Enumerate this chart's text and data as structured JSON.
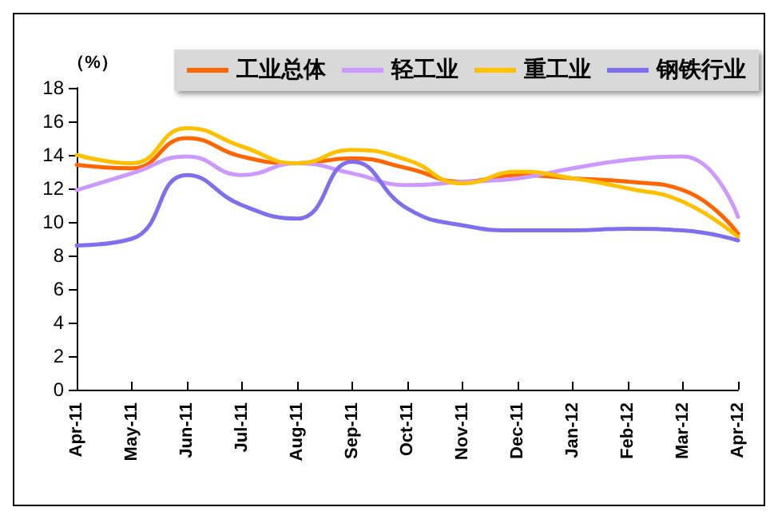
{
  "chart_data": {
    "type": "line",
    "ylabel": "（%）",
    "categories": [
      "Apr-11",
      "May-11",
      "Jun-11",
      "Jul-11",
      "Aug-11",
      "Sep-11",
      "Oct-11",
      "Nov-11",
      "Dec-11",
      "Jan-12",
      "Feb-12",
      "Mar-12",
      "Apr-12"
    ],
    "series": [
      {
        "name": "工业总体",
        "color": "#ff6600",
        "values": [
          13.4,
          13.2,
          15.0,
          13.9,
          13.5,
          13.8,
          13.2,
          12.4,
          12.8,
          12.6,
          12.4,
          11.9,
          9.3
        ]
      },
      {
        "name": "轻工业",
        "color": "#cc99ff",
        "values": [
          11.9,
          12.9,
          13.9,
          12.8,
          13.5,
          12.9,
          12.2,
          12.4,
          12.6,
          13.2,
          13.7,
          13.9,
          10.3
        ]
      },
      {
        "name": "重工业",
        "color": "#ffc000",
        "values": [
          14.0,
          13.5,
          15.6,
          14.5,
          13.5,
          14.3,
          13.7,
          12.3,
          13.0,
          12.6,
          12.0,
          11.2,
          9.1
        ]
      },
      {
        "name": "钢铁行业",
        "color": "#7f6fef",
        "values": [
          8.6,
          9.0,
          12.8,
          11.0,
          10.2,
          13.6,
          10.8,
          9.8,
          9.5,
          9.5,
          9.6,
          9.5,
          8.9
        ]
      }
    ],
    "ylim": [
      0,
      18
    ],
    "yticks": [
      0,
      2,
      4,
      6,
      8,
      10,
      12,
      14,
      16,
      18
    ],
    "grid": false,
    "legend": "top",
    "marker": "none",
    "line_style": "solid"
  }
}
